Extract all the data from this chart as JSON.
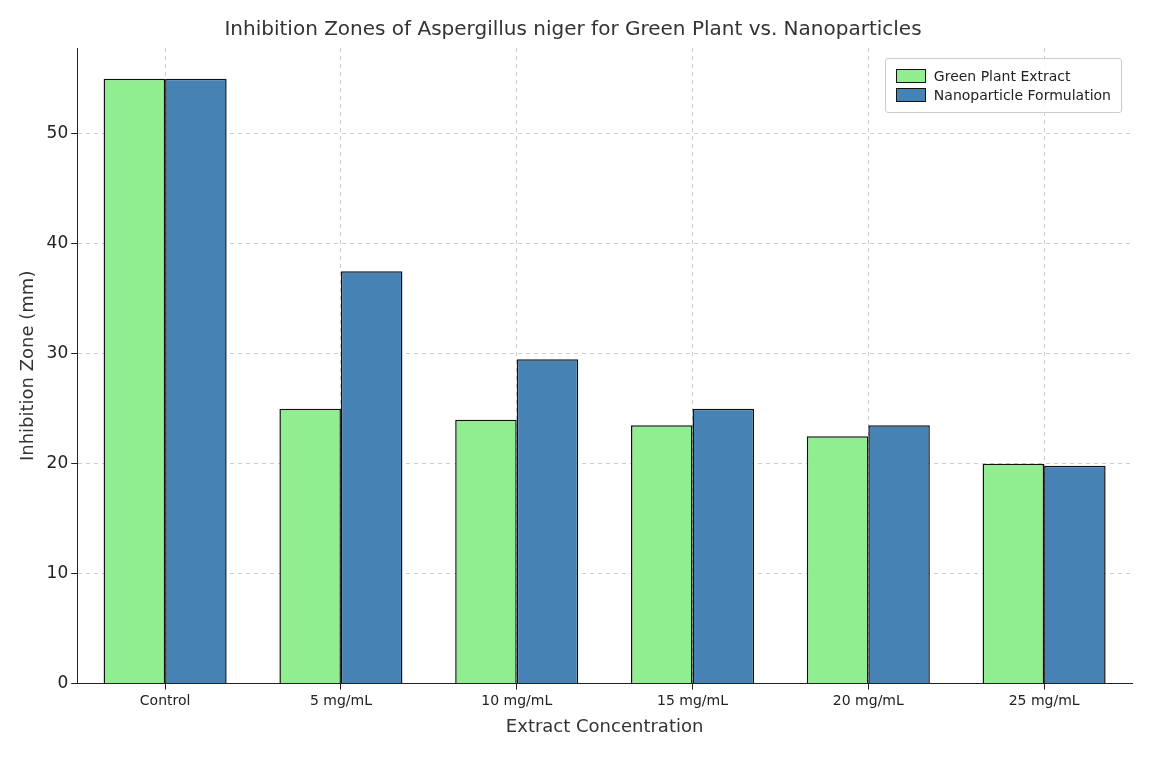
{
  "chart_data": {
    "type": "bar",
    "title": "Inhibition Zones of Aspergillus niger for Green Plant vs. Nanoparticles",
    "xlabel": "Extract Concentration",
    "ylabel": "Inhibition Zone (mm)",
    "categories": [
      "Control",
      "5 mg/mL",
      "10 mg/mL",
      "15 mg/mL",
      "20 mg/mL",
      "25 mg/mL"
    ],
    "series": [
      {
        "name": "Green Plant Extract",
        "color": "#90ee90",
        "values": [
          55,
          25,
          24,
          23.5,
          22.5,
          20
        ]
      },
      {
        "name": "Nanoparticle Formulation",
        "color": "#4682b4",
        "values": [
          55,
          37.5,
          29.5,
          25,
          23.5,
          19.8
        ]
      }
    ],
    "ylim": [
      0,
      57.8
    ],
    "yticks": [
      0,
      10,
      20,
      30,
      40,
      50
    ],
    "grid": true,
    "legend": "top right"
  }
}
